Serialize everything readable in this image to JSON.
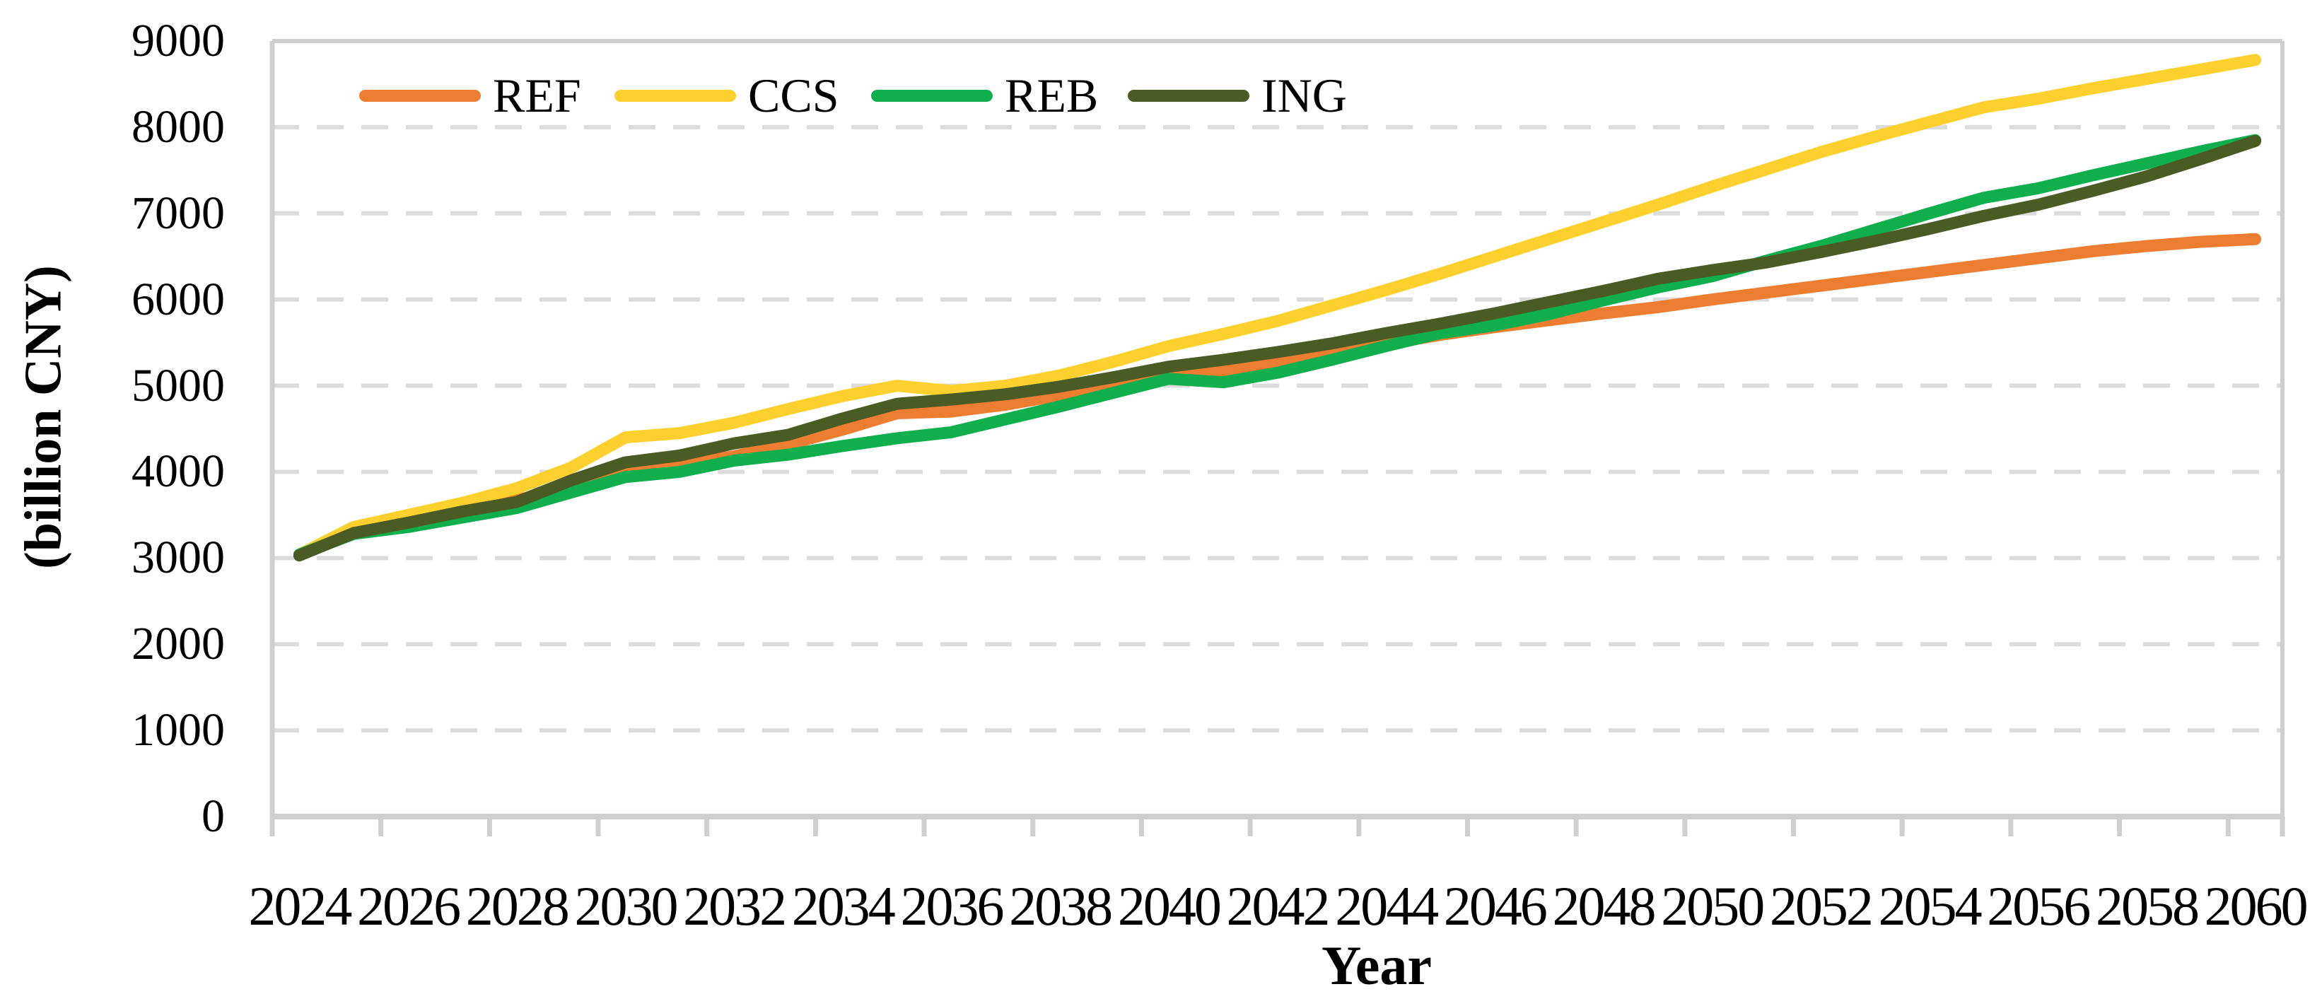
{
  "chart_data": {
    "type": "line",
    "title": "",
    "xlabel": "Year",
    "ylabel": "(billion CNY)",
    "ylim": [
      0,
      9000
    ],
    "y_tick_step": 1000,
    "y_ticks": [
      0,
      1000,
      2000,
      3000,
      4000,
      5000,
      6000,
      7000,
      8000,
      9000
    ],
    "x_tick_labels": [
      2024,
      2026,
      2028,
      2030,
      2032,
      2034,
      2036,
      2038,
      2040,
      2042,
      2044,
      2046,
      2048,
      2050,
      2052,
      2054,
      2056,
      2058,
      2060
    ],
    "x": [
      2024,
      2025,
      2026,
      2027,
      2028,
      2029,
      2030,
      2031,
      2032,
      2033,
      2034,
      2035,
      2036,
      2037,
      2038,
      2039,
      2040,
      2041,
      2042,
      2043,
      2044,
      2045,
      2046,
      2047,
      2048,
      2049,
      2050,
      2051,
      2052,
      2053,
      2054,
      2055,
      2056,
      2057,
      2058,
      2059,
      2060
    ],
    "grid": "dashed-horizontal",
    "legend_position": "top-left-inside",
    "colors": {
      "gridline": "#DCDCDC",
      "axis": "#CFCFCF",
      "text": "#000000",
      "background": "#FFFFFF"
    },
    "series": [
      {
        "name": "REF",
        "color": "#ED7D31",
        "values": [
          3040,
          3290,
          3410,
          3560,
          3670,
          3830,
          4010,
          4090,
          4180,
          4320,
          4490,
          4680,
          4700,
          4780,
          4890,
          4990,
          5090,
          5170,
          5270,
          5360,
          5480,
          5590,
          5680,
          5760,
          5840,
          5910,
          6000,
          6080,
          6160,
          6240,
          6320,
          6400,
          6480,
          6560,
          6620,
          6670,
          6700
        ]
      },
      {
        "name": "CCS",
        "color": "#FCD12E",
        "values": [
          3040,
          3360,
          3500,
          3640,
          3810,
          4050,
          4400,
          4450,
          4570,
          4730,
          4880,
          5000,
          4940,
          5000,
          5120,
          5280,
          5460,
          5600,
          5750,
          5930,
          6110,
          6300,
          6500,
          6700,
          6900,
          7100,
          7310,
          7510,
          7710,
          7890,
          8060,
          8230,
          8330,
          8450,
          8560,
          8670,
          8780
        ]
      },
      {
        "name": "REB",
        "color": "#0FAF4D",
        "values": [
          3040,
          3280,
          3360,
          3470,
          3580,
          3760,
          3940,
          4000,
          4130,
          4200,
          4300,
          4390,
          4460,
          4610,
          4760,
          4920,
          5080,
          5040,
          5150,
          5300,
          5460,
          5610,
          5700,
          5830,
          5990,
          6140,
          6270,
          6450,
          6620,
          6810,
          7000,
          7180,
          7290,
          7440,
          7580,
          7720,
          7850
        ]
      },
      {
        "name": "ING",
        "color": "#4B5B24",
        "values": [
          3030,
          3290,
          3410,
          3540,
          3650,
          3900,
          4110,
          4190,
          4330,
          4430,
          4620,
          4790,
          4840,
          4900,
          4990,
          5100,
          5220,
          5300,
          5390,
          5490,
          5610,
          5720,
          5840,
          5970,
          6100,
          6240,
          6340,
          6430,
          6550,
          6680,
          6820,
          6970,
          7100,
          7260,
          7430,
          7630,
          7840
        ]
      }
    ]
  },
  "layout_note_values": {
    "legend_item_lefts": [
      508,
      869,
      1232,
      1595
    ]
  }
}
